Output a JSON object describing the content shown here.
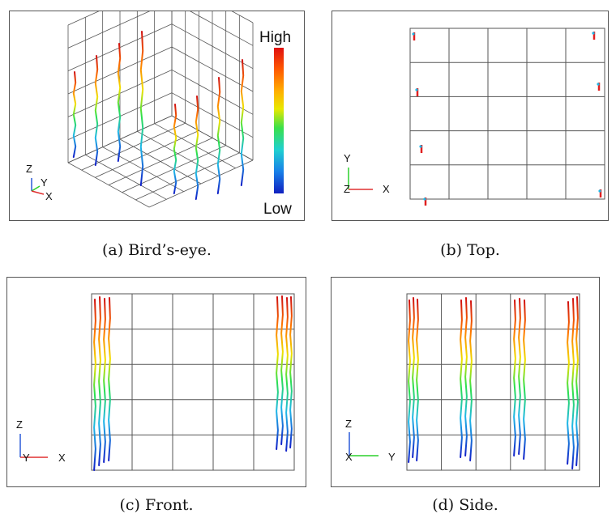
{
  "colorbar": {
    "high": "High",
    "low": "Low"
  },
  "axes": {
    "a": {
      "z": "Z",
      "y": "Y",
      "x": "X"
    },
    "b": {
      "y": "Y",
      "z": "Z",
      "x": "X"
    },
    "c": {
      "z": "Z",
      "y": "Y",
      "x": "X"
    },
    "d": {
      "z": "Z",
      "x": "X",
      "y": "Y"
    }
  },
  "captions": {
    "a": "(a) Bird’s-eye.",
    "b": "(b) Top.",
    "c": "(c) Front.",
    "d": "(d) Side."
  },
  "colors": {
    "high": "#e0201a",
    "mid": "#2ee04a",
    "low": "#1830c8",
    "axis_x": "#e03030",
    "axis_y": "#2bd02b",
    "axis_z": "#2a5ad8"
  }
}
